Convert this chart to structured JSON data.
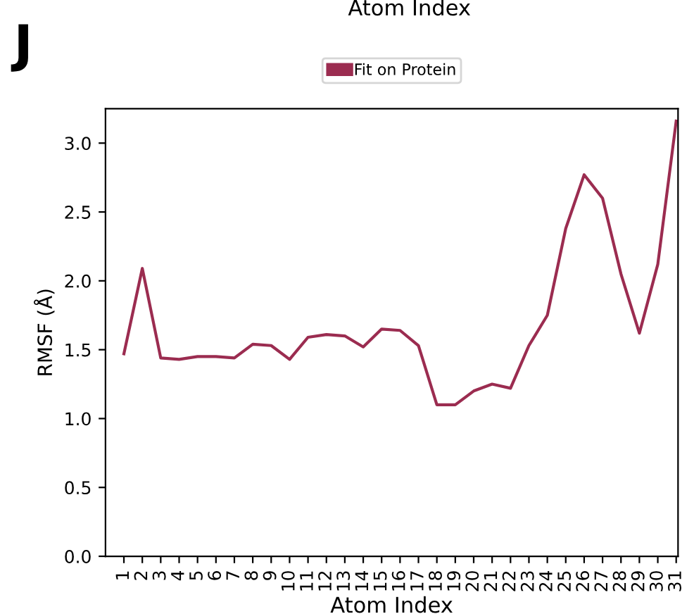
{
  "chart_data": {
    "type": "line",
    "categories": [
      "1",
      "2",
      "3",
      "4",
      "5",
      "6",
      "7",
      "8",
      "9",
      "10",
      "11",
      "12",
      "13",
      "14",
      "15",
      "16",
      "17",
      "18",
      "19",
      "20",
      "21",
      "22",
      "23",
      "24",
      "25",
      "26",
      "27",
      "28",
      "29",
      "30",
      "31"
    ],
    "series": [
      {
        "name": "Fit on Protein",
        "color": "#9b2c50",
        "values": [
          1.47,
          2.09,
          1.44,
          1.43,
          1.45,
          1.45,
          1.44,
          1.54,
          1.53,
          1.43,
          1.59,
          1.61,
          1.6,
          1.52,
          1.65,
          1.64,
          1.53,
          1.1,
          1.1,
          1.2,
          1.25,
          1.22,
          1.53,
          1.75,
          2.38,
          2.77,
          2.6,
          2.05,
          1.62,
          2.12,
          3.16
        ]
      }
    ],
    "xlabel": "Atom Index",
    "ylabel": "RMSF (Å)",
    "ylim": [
      0,
      3.25
    ],
    "yticks": [
      {
        "value": 0,
        "label": "0.0"
      },
      0.5,
      {
        "value": 1,
        "label": "1.0"
      },
      1.5,
      {
        "value": 2,
        "label": "2.0"
      },
      2.5,
      {
        "value": 3,
        "label": "3.0"
      }
    ],
    "annotations": [
      "J",
      "Atom Index"
    ],
    "legend": "top",
    "grid": false,
    "marker": "none",
    "line_style": "solid"
  }
}
